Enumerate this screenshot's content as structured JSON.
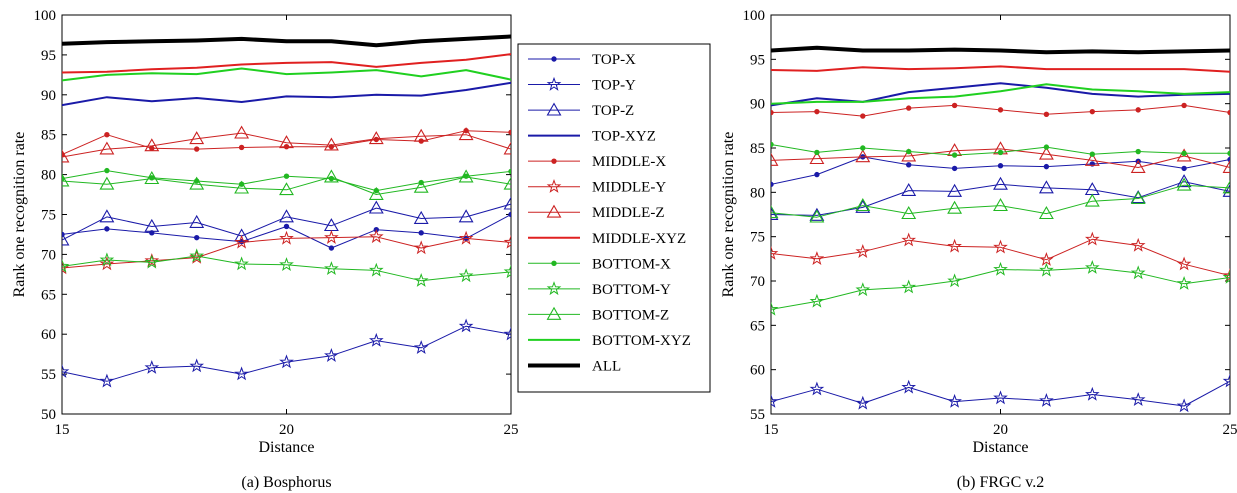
{
  "chart_data": [
    {
      "type": "line",
      "caption": "(a) Bosphorus",
      "xlabel": "Distance",
      "ylabel": "Rank one recognition rate",
      "xlim": [
        15,
        25
      ],
      "ylim": [
        50,
        100
      ],
      "xticks": [
        "15",
        "20",
        "25"
      ],
      "yticks": [
        "50",
        "55",
        "60",
        "65",
        "70",
        "75",
        "80",
        "85",
        "90",
        "95",
        "100"
      ],
      "x": [
        15,
        16,
        17,
        18,
        19,
        20,
        21,
        22,
        23,
        24,
        25
      ],
      "series": [
        {
          "name": "TOP-X",
          "values": [
            72.5,
            73.2,
            72.7,
            72.1,
            71.6,
            73.5,
            70.8,
            73.1,
            72.7,
            72.0,
            75.0
          ]
        },
        {
          "name": "TOP-Y",
          "values": [
            55.3,
            54.1,
            55.8,
            56.0,
            55.0,
            56.5,
            57.3,
            59.2,
            58.3,
            61.0,
            60.0
          ]
        },
        {
          "name": "TOP-Z",
          "values": [
            71.8,
            74.7,
            73.5,
            74.0,
            72.3,
            74.7,
            73.6,
            75.8,
            74.5,
            74.7,
            76.3
          ]
        },
        {
          "name": "TOP-XYZ",
          "values": [
            88.7,
            89.7,
            89.2,
            89.6,
            89.1,
            89.8,
            89.7,
            90.0,
            89.9,
            90.6,
            91.5
          ]
        },
        {
          "name": "MIDDLE-X",
          "values": [
            82.5,
            85.0,
            83.3,
            83.2,
            83.4,
            83.5,
            83.5,
            84.4,
            84.2,
            85.5,
            85.3
          ]
        },
        {
          "name": "MIDDLE-Y",
          "values": [
            68.3,
            68.8,
            69.2,
            69.6,
            71.5,
            72.0,
            72.1,
            72.2,
            70.8,
            72.0,
            71.5
          ]
        },
        {
          "name": "MIDDLE-Z",
          "values": [
            82.2,
            83.2,
            83.6,
            84.5,
            85.2,
            84.0,
            83.7,
            84.5,
            84.8,
            85.0,
            83.2
          ]
        },
        {
          "name": "MIDDLE-XYZ",
          "values": [
            92.8,
            92.9,
            93.2,
            93.4,
            93.8,
            94.0,
            94.1,
            93.5,
            94.0,
            94.4,
            95.1
          ]
        },
        {
          "name": "BOTTOM-X",
          "values": [
            79.5,
            80.5,
            79.6,
            79.2,
            78.8,
            79.8,
            79.5,
            78.0,
            79.0,
            79.8,
            80.4
          ]
        },
        {
          "name": "BOTTOM-Y",
          "values": [
            68.5,
            69.3,
            69.0,
            69.8,
            68.8,
            68.7,
            68.2,
            68.0,
            66.7,
            67.3,
            67.8
          ]
        },
        {
          "name": "BOTTOM-Z",
          "values": [
            79.2,
            78.8,
            79.5,
            78.8,
            78.3,
            78.1,
            79.7,
            77.5,
            78.4,
            79.7,
            78.8
          ]
        },
        {
          "name": "BOTTOM-XYZ",
          "values": [
            91.8,
            92.5,
            92.7,
            92.6,
            93.3,
            92.6,
            92.8,
            93.1,
            92.3,
            93.1,
            91.9
          ]
        },
        {
          "name": "ALL",
          "values": [
            96.4,
            96.6,
            96.7,
            96.8,
            97.0,
            96.7,
            96.7,
            96.2,
            96.7,
            97.0,
            97.3
          ]
        }
      ]
    },
    {
      "type": "line",
      "caption": "(b) FRGC v.2",
      "xlabel": "Distance",
      "ylabel": "Rank one recognition rate",
      "xlim": [
        15,
        25
      ],
      "ylim": [
        55,
        100
      ],
      "xticks": [
        "15",
        "20",
        "25"
      ],
      "yticks": [
        "55",
        "60",
        "65",
        "70",
        "75",
        "80",
        "85",
        "90",
        "95",
        "100"
      ],
      "x": [
        15,
        16,
        17,
        18,
        19,
        20,
        21,
        22,
        23,
        24,
        25
      ],
      "series": [
        {
          "name": "TOP-X",
          "values": [
            80.9,
            82.0,
            84.0,
            83.1,
            82.7,
            83.0,
            82.9,
            83.2,
            83.5,
            82.7,
            83.7
          ]
        },
        {
          "name": "TOP-Y",
          "values": [
            56.4,
            57.8,
            56.2,
            58.0,
            56.4,
            56.8,
            56.5,
            57.2,
            56.6,
            55.9,
            58.7
          ]
        },
        {
          "name": "TOP-Z",
          "values": [
            77.5,
            77.4,
            78.3,
            80.2,
            80.1,
            80.9,
            80.5,
            80.3,
            79.4,
            81.2,
            80.1
          ]
        },
        {
          "name": "TOP-XYZ",
          "values": [
            89.8,
            90.6,
            90.2,
            91.3,
            91.8,
            92.3,
            91.8,
            91.1,
            90.8,
            91.0,
            91.1
          ]
        },
        {
          "name": "MIDDLE-X",
          "values": [
            89.0,
            89.1,
            88.6,
            89.5,
            89.8,
            89.3,
            88.8,
            89.1,
            89.3,
            89.8,
            89.0
          ]
        },
        {
          "name": "MIDDLE-Y",
          "values": [
            73.1,
            72.5,
            73.3,
            74.6,
            73.9,
            73.8,
            72.4,
            74.7,
            74.0,
            71.9,
            70.6
          ]
        },
        {
          "name": "MIDDLE-Z",
          "values": [
            83.6,
            83.8,
            84.0,
            84.1,
            84.7,
            84.9,
            84.3,
            83.6,
            82.8,
            84.1,
            82.8
          ]
        },
        {
          "name": "MIDDLE-XYZ",
          "values": [
            93.8,
            93.7,
            94.1,
            93.9,
            94.0,
            94.2,
            93.9,
            93.9,
            93.9,
            93.9,
            93.6
          ]
        },
        {
          "name": "BOTTOM-X",
          "values": [
            85.4,
            84.5,
            85.0,
            84.6,
            84.2,
            84.5,
            85.1,
            84.3,
            84.6,
            84.4,
            84.4
          ]
        },
        {
          "name": "BOTTOM-Y",
          "values": [
            66.8,
            67.7,
            69.0,
            69.3,
            70.0,
            71.3,
            71.2,
            71.5,
            70.9,
            69.7,
            70.4
          ]
        },
        {
          "name": "BOTTOM-Z",
          "values": [
            77.7,
            77.2,
            78.5,
            77.6,
            78.2,
            78.5,
            77.6,
            79.0,
            79.3,
            80.8,
            80.5
          ]
        },
        {
          "name": "BOTTOM-XYZ",
          "values": [
            90.0,
            90.2,
            90.2,
            90.6,
            90.8,
            91.4,
            92.2,
            91.6,
            91.4,
            91.1,
            91.3
          ]
        },
        {
          "name": "ALL",
          "values": [
            96.0,
            96.3,
            96.0,
            96.0,
            96.1,
            96.0,
            95.8,
            95.9,
            95.8,
            95.9,
            96.0
          ]
        }
      ]
    }
  ],
  "legend": {
    "placement": "between-panels",
    "items": [
      {
        "label": "TOP-X",
        "color": "#1a1aa8",
        "marker": "dot",
        "width": 1
      },
      {
        "label": "TOP-Y",
        "color": "#1a1aa8",
        "marker": "star",
        "width": 1
      },
      {
        "label": "TOP-Z",
        "color": "#1a1aa8",
        "marker": "triangle",
        "width": 1
      },
      {
        "label": "TOP-XYZ",
        "color": "#1a1aa8",
        "marker": "none",
        "width": 2
      },
      {
        "label": "MIDDLE-X",
        "color": "#cc2222",
        "marker": "dot",
        "width": 1
      },
      {
        "label": "MIDDLE-Y",
        "color": "#cc2222",
        "marker": "star",
        "width": 1
      },
      {
        "label": "MIDDLE-Z",
        "color": "#cc2222",
        "marker": "triangle",
        "width": 1
      },
      {
        "label": "MIDDLE-XYZ",
        "color": "#e02020",
        "marker": "none",
        "width": 2
      },
      {
        "label": "BOTTOM-X",
        "color": "#22b822",
        "marker": "dot",
        "width": 1
      },
      {
        "label": "BOTTOM-Y",
        "color": "#22b822",
        "marker": "star",
        "width": 1
      },
      {
        "label": "BOTTOM-Z",
        "color": "#22b822",
        "marker": "triangle",
        "width": 1
      },
      {
        "label": "BOTTOM-XYZ",
        "color": "#20d020",
        "marker": "none",
        "width": 2
      },
      {
        "label": "ALL",
        "color": "#000000",
        "marker": "none",
        "width": 4
      }
    ]
  }
}
